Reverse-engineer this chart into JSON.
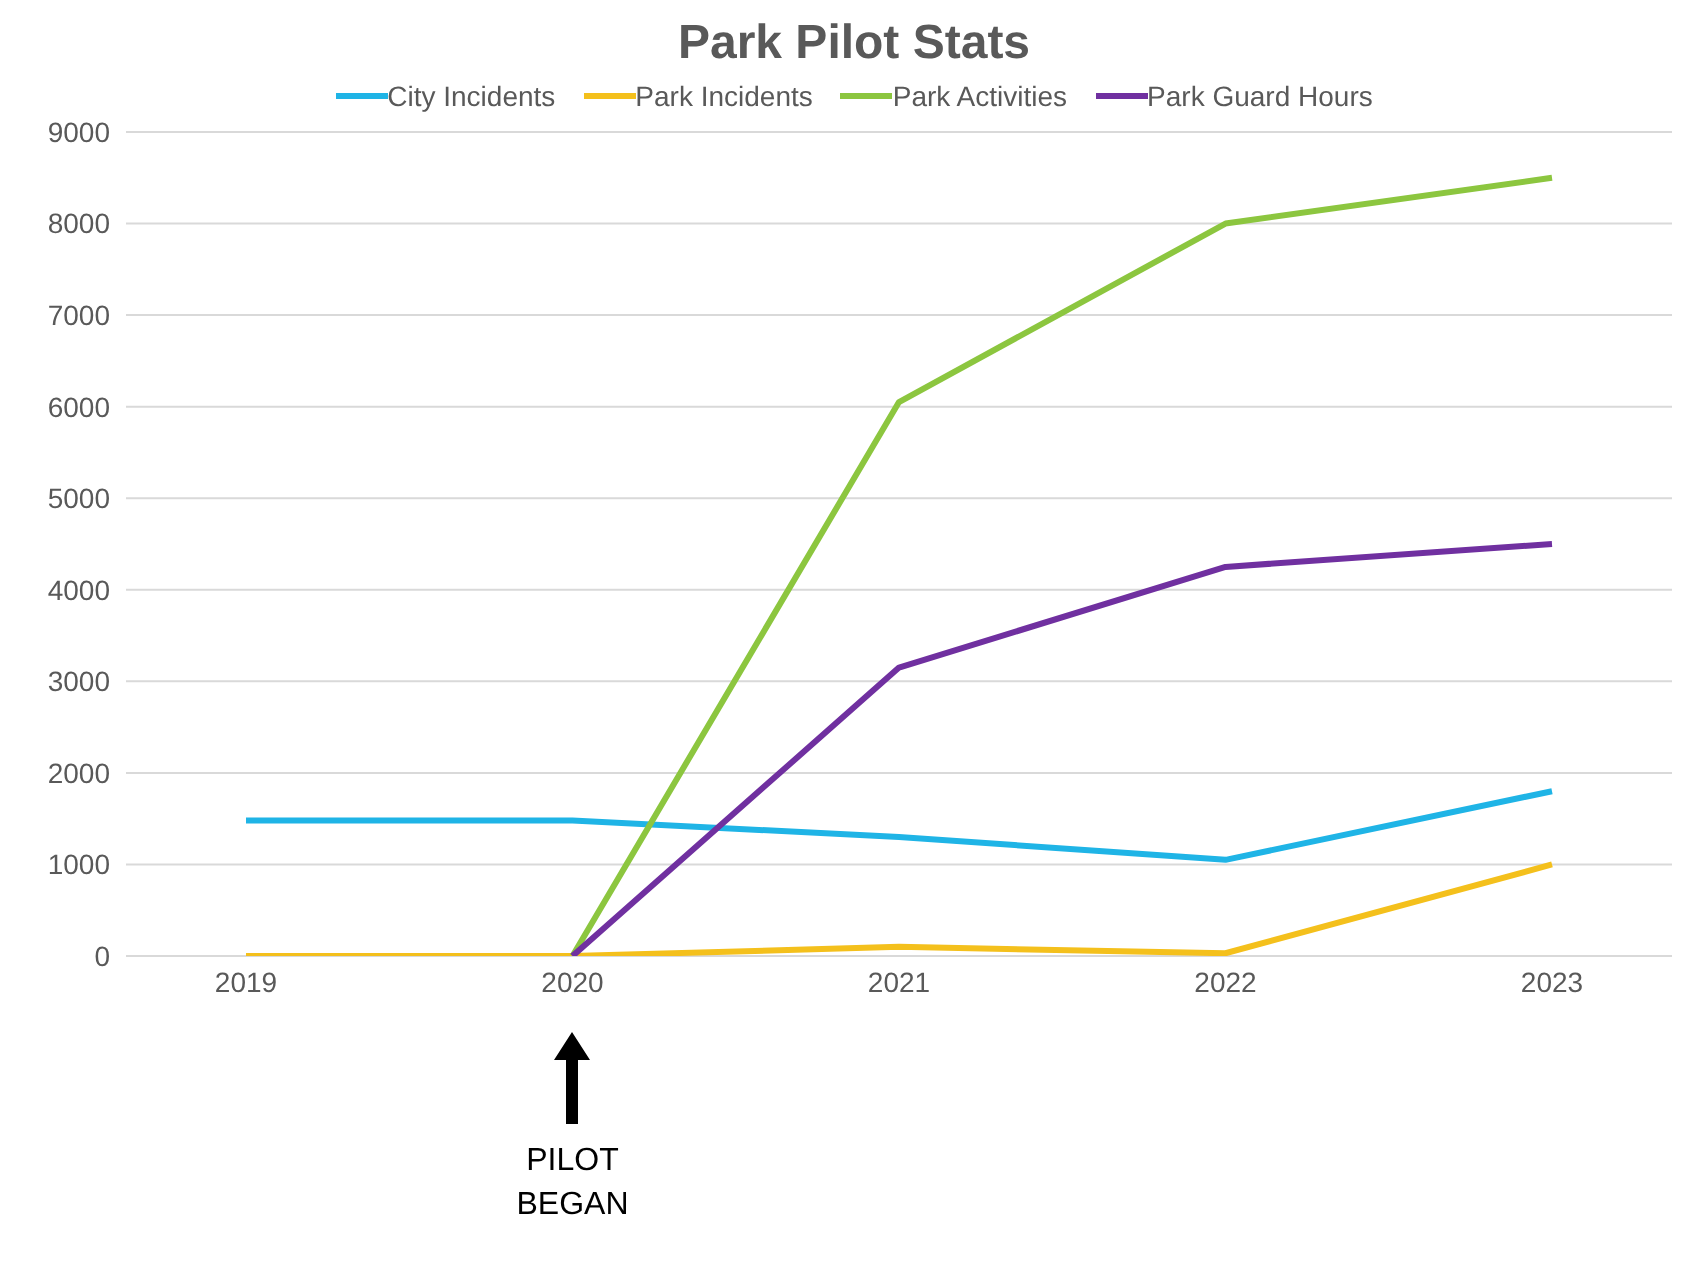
{
  "chart_data": {
    "type": "line",
    "title": "Park Pilot Stats",
    "categories": [
      "2019",
      "2020",
      "2021",
      "2022",
      "2023"
    ],
    "series": [
      {
        "name": "City Incidents",
        "color": "#1fb4e6",
        "values": [
          1480,
          1480,
          1300,
          1050,
          1800
        ]
      },
      {
        "name": "Park Incidents",
        "color": "#f4c01c",
        "values": [
          0,
          0,
          100,
          30,
          1000
        ]
      },
      {
        "name": "Park Activities",
        "color": "#8cc63f",
        "values": [
          null,
          0,
          6050,
          8000,
          8500
        ]
      },
      {
        "name": "Park Guard Hours",
        "color": "#7030a0",
        "values": [
          null,
          0,
          3150,
          4250,
          4500
        ]
      }
    ],
    "ylim": [
      0,
      9000
    ],
    "yticks": [
      0,
      1000,
      2000,
      3000,
      4000,
      5000,
      6000,
      7000,
      8000,
      9000
    ],
    "grid": "y",
    "legend": "top",
    "marker": "none",
    "line_style": "solid",
    "annotations": [
      "PILOT BEGAN"
    ]
  }
}
